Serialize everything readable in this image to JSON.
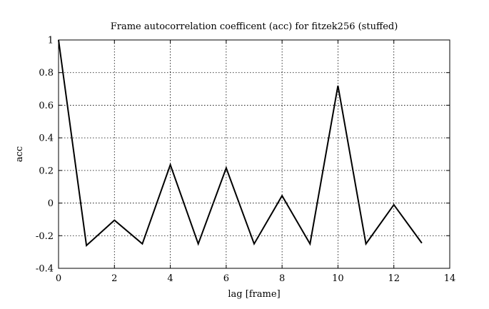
{
  "chart_data": {
    "type": "line",
    "title": "Frame autocorrelation coefficent (acc) for fitzek256 (stuffed)",
    "xlabel": "lag [frame]",
    "ylabel": "acc",
    "xlim": [
      0,
      14
    ],
    "ylim": [
      -0.4,
      1
    ],
    "xticks": [
      0,
      2,
      4,
      6,
      8,
      10,
      12,
      14
    ],
    "yticks": [
      -0.4,
      -0.2,
      0,
      0.2,
      0.4,
      0.6,
      0.8,
      1
    ],
    "xtick_labels": [
      "0",
      "2",
      "4",
      "6",
      "8",
      "10",
      "12",
      "14"
    ],
    "ytick_labels": [
      "-0.4",
      "-0.2",
      "0",
      "0.2",
      "0.4",
      "0.6",
      "0.8",
      "1"
    ],
    "grid": true,
    "series": [
      {
        "x": [
          0,
          1,
          2,
          3,
          4,
          5,
          6,
          7,
          8,
          9,
          10,
          11,
          12,
          13
        ],
        "values": [
          1.0,
          -0.26,
          -0.105,
          -0.25,
          0.235,
          -0.25,
          0.215,
          -0.25,
          0.045,
          -0.25,
          0.72,
          -0.25,
          -0.01,
          -0.245
        ],
        "color": "#000000"
      }
    ]
  }
}
